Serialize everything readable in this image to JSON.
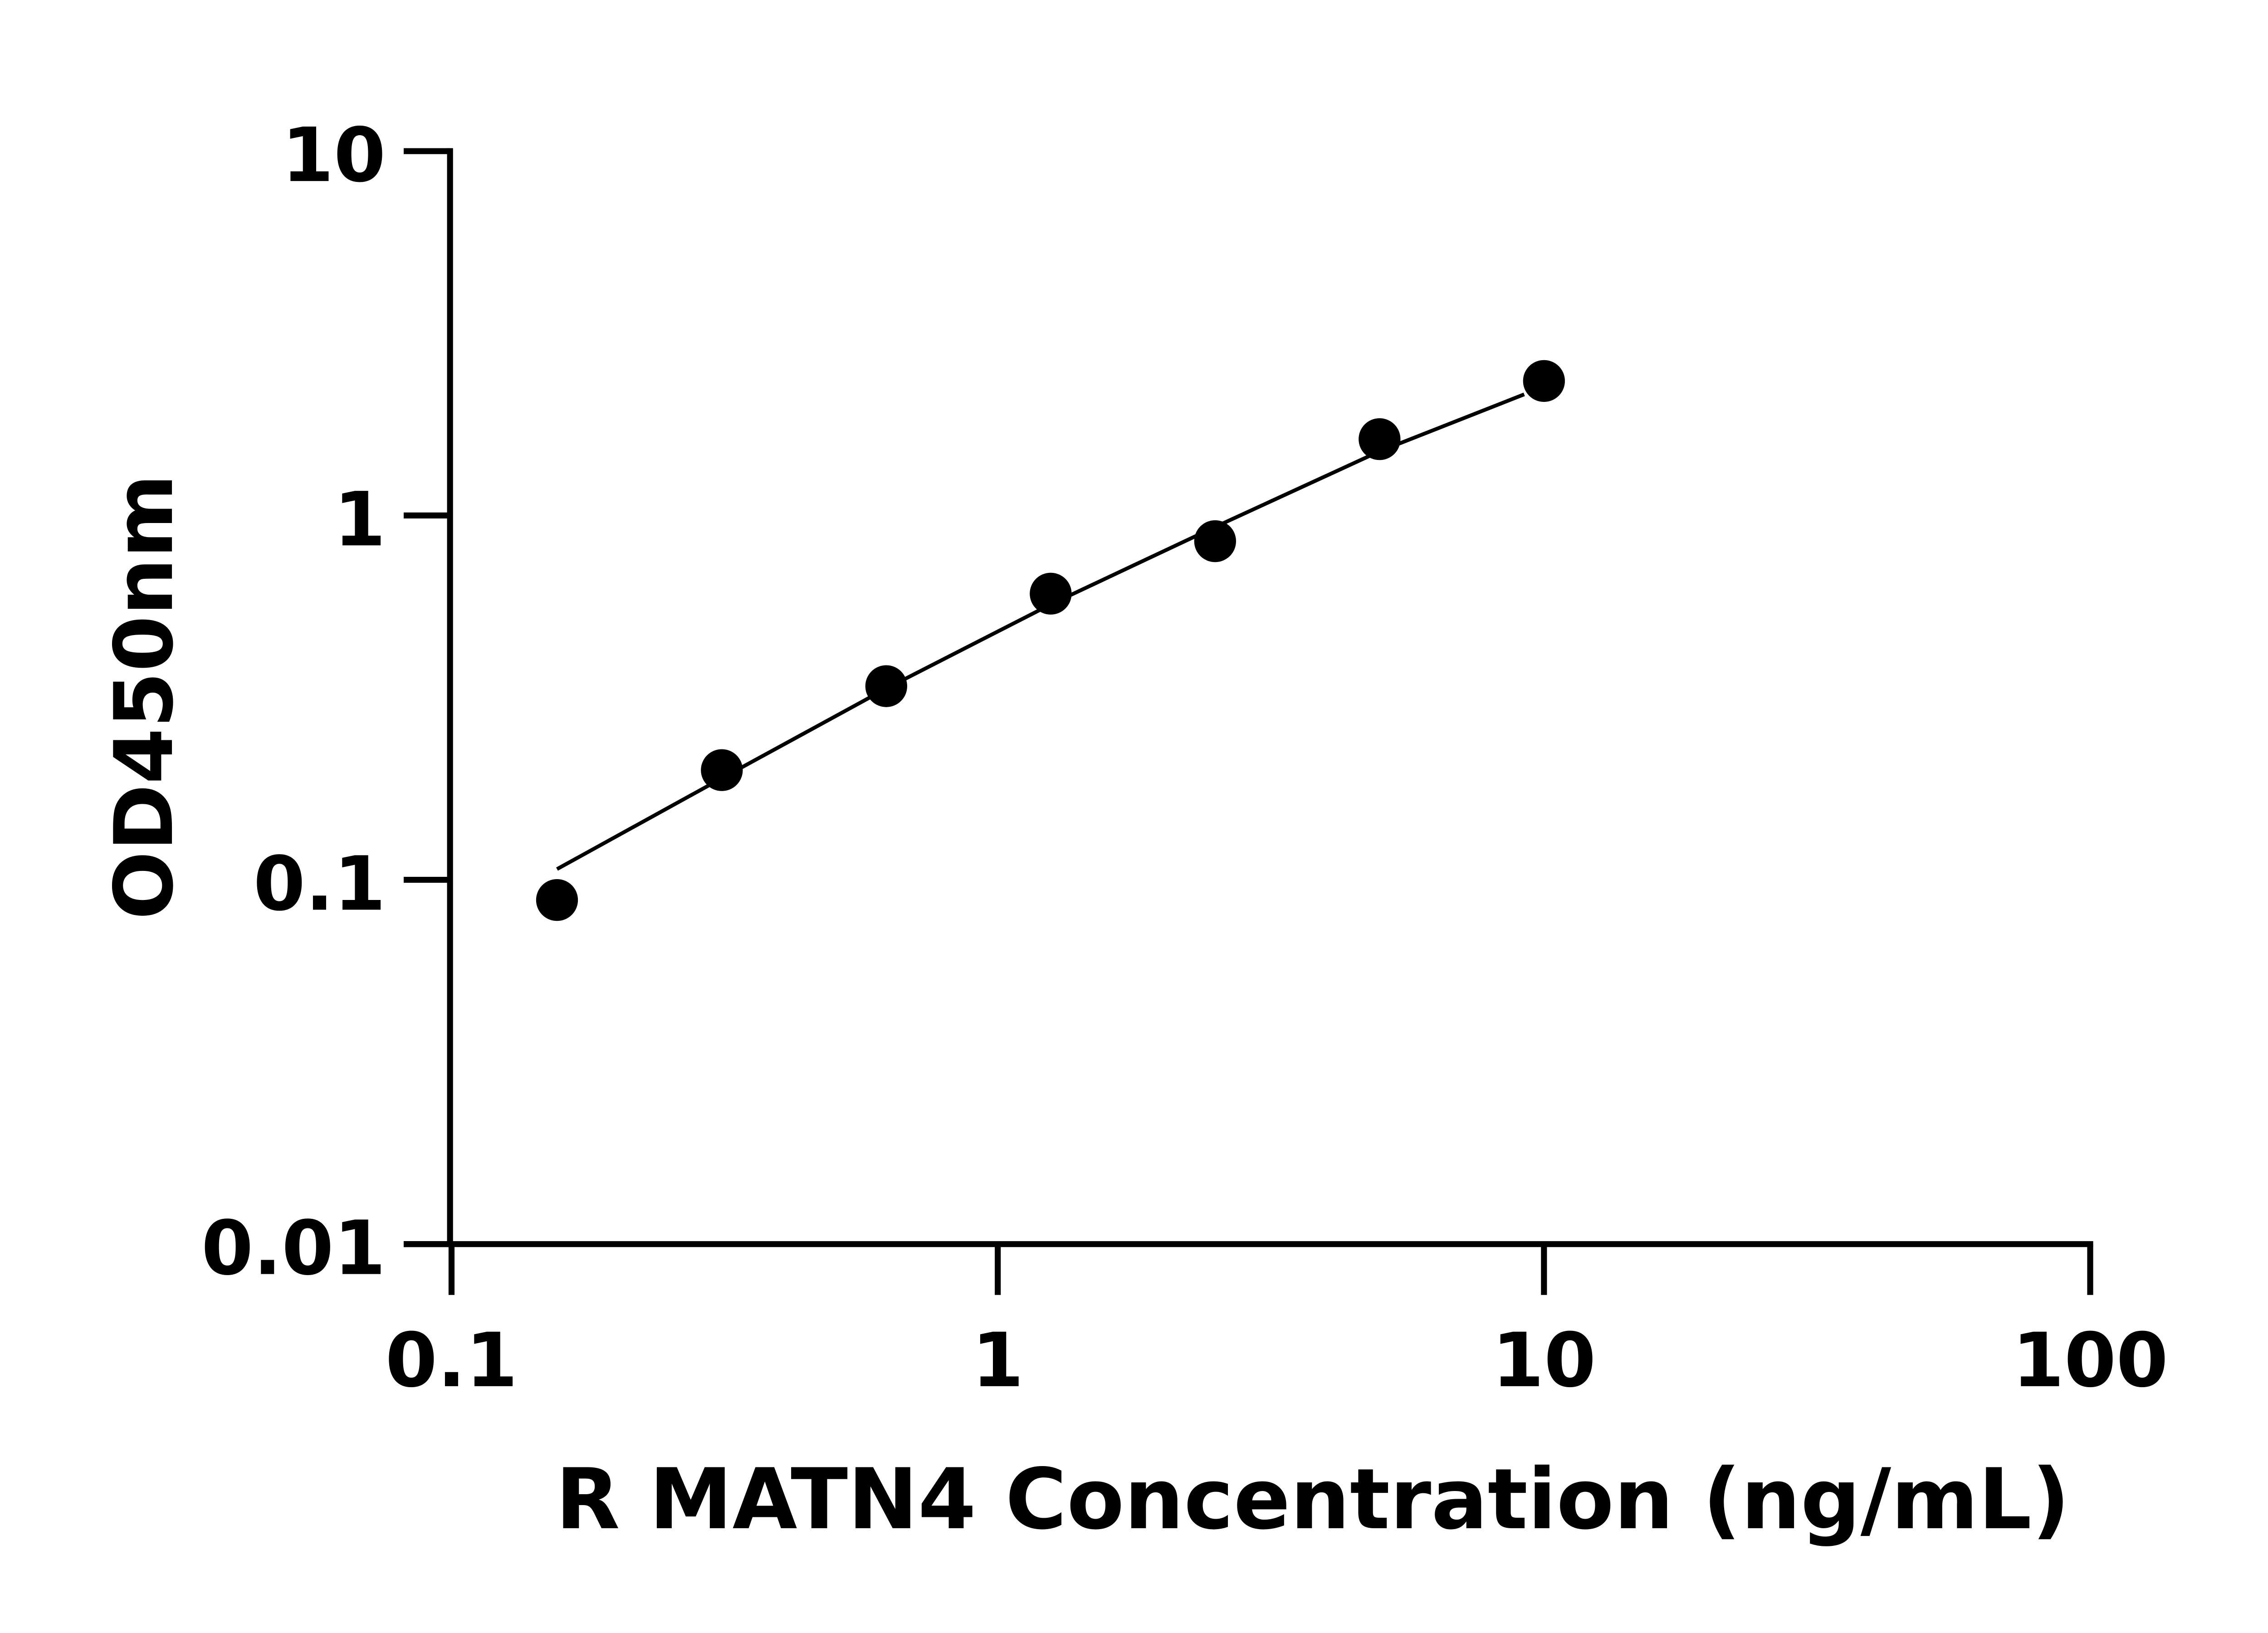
{
  "chart_data": {
    "type": "scatter",
    "title": "",
    "xlabel": "R MATN4 Concentration (ng/mL)",
    "ylabel": "OD450nm",
    "x_scale": "log",
    "y_scale": "log",
    "xlim": [
      0.1,
      100
    ],
    "ylim": [
      0.01,
      10
    ],
    "x_ticks": [
      "0.1",
      "1",
      "10",
      "100"
    ],
    "y_ticks": [
      "0.01",
      "0.1",
      "1",
      "10"
    ],
    "x_tick_values": [
      0.1,
      1,
      10,
      100
    ],
    "y_tick_values": [
      0.01,
      0.1,
      1,
      10
    ],
    "grid": false,
    "legend": "none",
    "marker_color": "#000000",
    "points": [
      {
        "x": 0.156,
        "y": 0.088
      },
      {
        "x": 0.3125,
        "y": 0.2
      },
      {
        "x": 0.625,
        "y": 0.34
      },
      {
        "x": 1.25,
        "y": 0.61
      },
      {
        "x": 2.5,
        "y": 0.85
      },
      {
        "x": 5,
        "y": 1.62
      },
      {
        "x": 10,
        "y": 2.34
      }
    ],
    "fit_curve": [
      {
        "x": 0.156,
        "y": 0.107
      },
      {
        "x": 0.3125,
        "y": 0.19
      },
      {
        "x": 0.625,
        "y": 0.335
      },
      {
        "x": 1.25,
        "y": 0.57
      },
      {
        "x": 2.5,
        "y": 0.93
      },
      {
        "x": 5,
        "y": 1.5
      },
      {
        "x": 9.2,
        "y": 2.15
      }
    ]
  }
}
